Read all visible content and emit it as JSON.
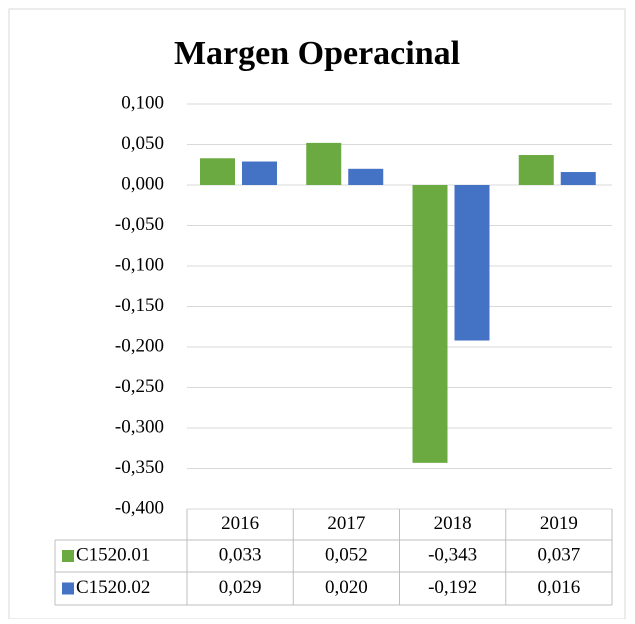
{
  "chart_data": {
    "type": "bar",
    "title": "Margen Operacinal",
    "categories": [
      "2016",
      "2017",
      "2018",
      "2019"
    ],
    "series": [
      {
        "name": "C1520.01",
        "color": "#6aaa40",
        "values": [
          0.033,
          0.052,
          -0.343,
          0.037
        ],
        "value_labels": [
          "0,033",
          "0,052",
          "-0,343",
          "0,037"
        ]
      },
      {
        "name": "C1520.02",
        "color": "#4472c4",
        "values": [
          0.029,
          0.02,
          -0.192,
          0.016
        ],
        "value_labels": [
          "0,029",
          "0,020",
          "-0,192",
          "0,016"
        ]
      }
    ],
    "ylim": [
      -0.4,
      0.1
    ],
    "yticks": [
      {
        "value": 0.1,
        "label": "0,100"
      },
      {
        "value": 0.05,
        "label": "0,050"
      },
      {
        "value": 0,
        "label": "0,000"
      },
      {
        "value": -0.05,
        "label": "-0,050"
      },
      {
        "value": -0.1,
        "label": "-0,100"
      },
      {
        "value": -0.15,
        "label": "-0,150"
      },
      {
        "value": -0.2,
        "label": "-0,200"
      },
      {
        "value": -0.25,
        "label": "-0,250"
      },
      {
        "value": -0.3,
        "label": "-0,300"
      },
      {
        "value": -0.35,
        "label": "-0,350"
      },
      {
        "value": -0.4,
        "label": "-0,400"
      }
    ],
    "grid": true
  }
}
